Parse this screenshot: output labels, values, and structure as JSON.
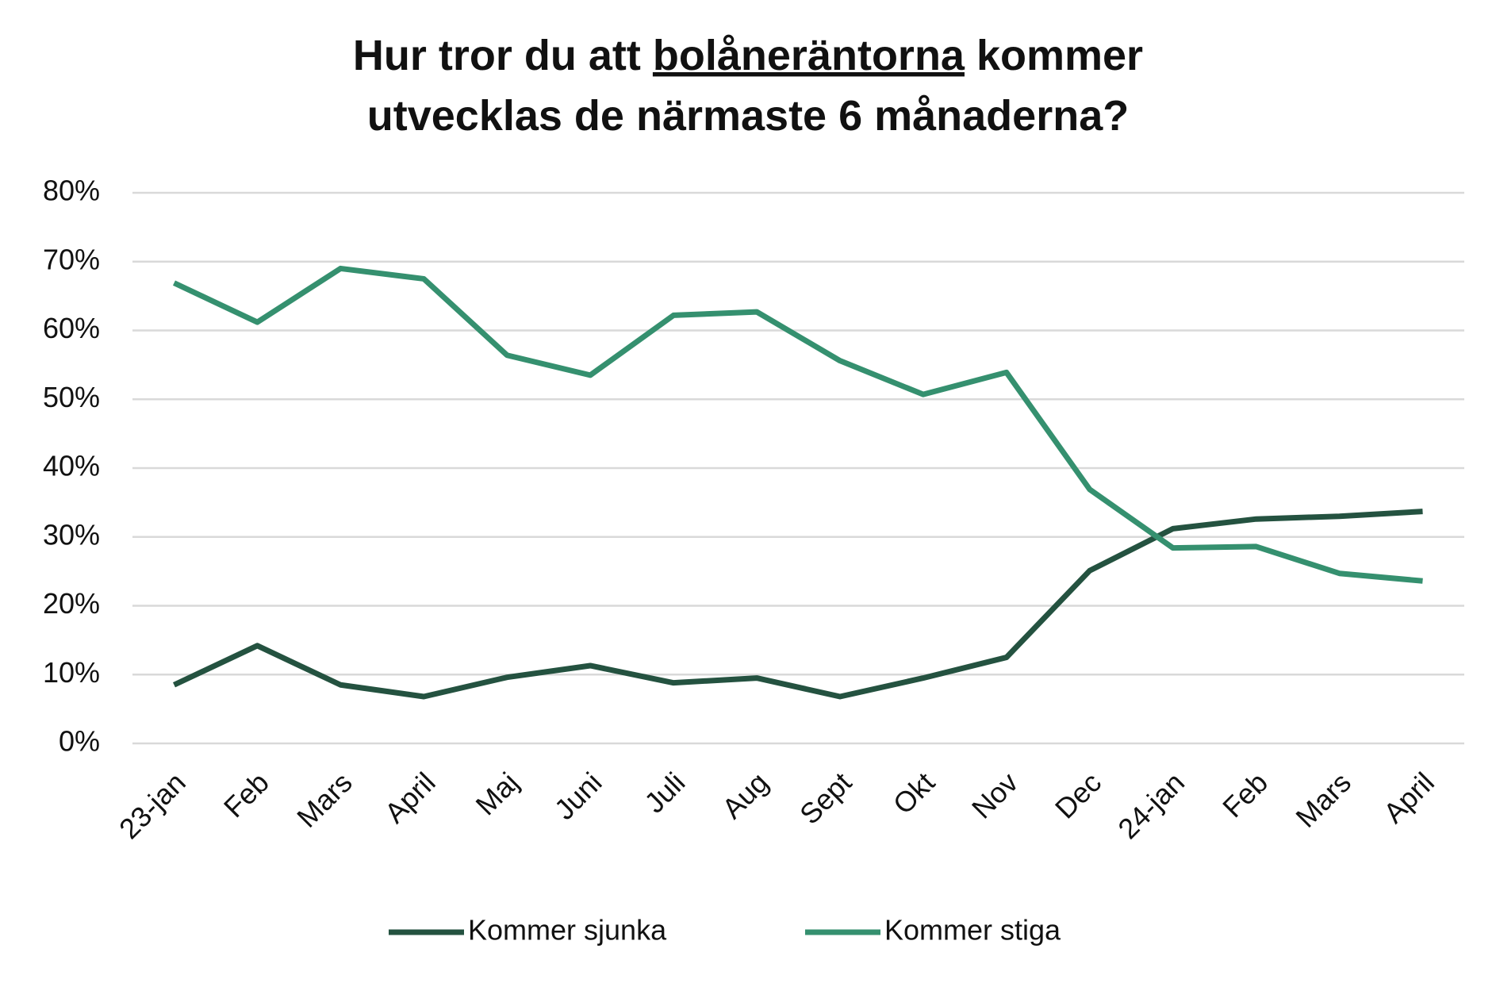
{
  "chart_data": {
    "type": "line",
    "title": [
      [
        "Hur tror du att ",
        "bolåneräntorna",
        " kommer"
      ],
      [
        "utvecklas de närmaste 6 månaderna?"
      ]
    ],
    "categories": [
      "23-jan",
      "Feb",
      "Mars",
      "April",
      "Maj",
      "Juni",
      "Juli",
      "Aug",
      "Sept",
      "Okt",
      "Nov",
      "Dec",
      "24-jan",
      "Feb",
      "Mars",
      "April"
    ],
    "series": [
      {
        "name": "Kommer sjunka",
        "color": "#245240",
        "values": [
          8.5,
          14.2,
          8.5,
          6.8,
          9.6,
          11.3,
          8.8,
          9.5,
          6.8,
          9.5,
          12.5,
          25.1,
          31.2,
          32.6,
          33.0,
          33.7
        ]
      },
      {
        "name": "Kommer stiga",
        "color": "#35906f",
        "values": [
          66.9,
          61.2,
          69.0,
          67.5,
          56.4,
          53.5,
          62.2,
          62.7,
          55.6,
          50.7,
          53.9,
          36.9,
          28.4,
          28.6,
          24.7,
          23.6
        ]
      }
    ],
    "ylim": [
      0,
      80
    ],
    "yticks": [
      {
        "value": 0,
        "label": "0%"
      },
      {
        "value": 10,
        "label": "10%"
      },
      {
        "value": 20,
        "label": "20%"
      },
      {
        "value": 30,
        "label": "30%"
      },
      {
        "value": 40,
        "label": "40%"
      },
      {
        "value": 50,
        "label": "50%"
      },
      {
        "value": 60,
        "label": "60%"
      },
      {
        "value": 70,
        "label": "70%"
      },
      {
        "value": 80,
        "label": "80%"
      }
    ],
    "grid": true,
    "legend": "bottom"
  }
}
